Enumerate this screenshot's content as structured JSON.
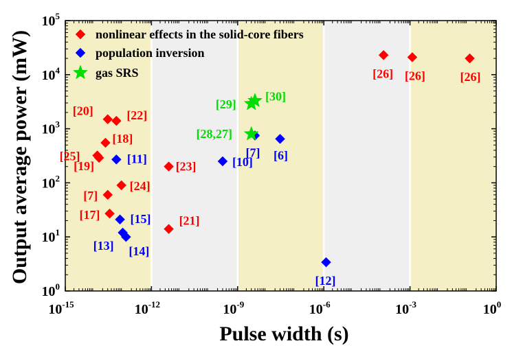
{
  "chart_data": {
    "type": "scatter",
    "xlabel": "Pulse width (s)",
    "ylabel": "Output average power (mW)",
    "x_scale": "log",
    "y_scale": "log",
    "xlim": [
      1e-15,
      1
    ],
    "ylim": [
      1,
      100000
    ],
    "x_ticks": [
      {
        "value": 1e-15,
        "base": "10",
        "exp": "-15"
      },
      {
        "value": 1e-12,
        "base": "10",
        "exp": "-12"
      },
      {
        "value": 1e-09,
        "base": "10",
        "exp": "-9"
      },
      {
        "value": 1e-06,
        "base": "10",
        "exp": "-6"
      },
      {
        "value": 0.001,
        "base": "10",
        "exp": "-3"
      },
      {
        "value": 1,
        "base": "10",
        "exp": "0"
      }
    ],
    "y_ticks": [
      {
        "value": 1,
        "base": "10",
        "exp": "0"
      },
      {
        "value": 10,
        "base": "10",
        "exp": "1"
      },
      {
        "value": 100,
        "base": "10",
        "exp": "2"
      },
      {
        "value": 1000,
        "base": "10",
        "exp": "3"
      },
      {
        "value": 10000,
        "base": "10",
        "exp": "4"
      },
      {
        "value": 100000,
        "base": "10",
        "exp": "5"
      }
    ],
    "bands": [
      {
        "x0": 1e-15,
        "x1": 1e-12,
        "color": "#f5efc6"
      },
      {
        "x0": 1e-12,
        "x1": 1e-09,
        "color": "#efefef"
      },
      {
        "x0": 1e-09,
        "x1": 1e-06,
        "color": "#f5efc6"
      },
      {
        "x0": 1e-06,
        "x1": 0.001,
        "color": "#efefef"
      },
      {
        "x0": 0.001,
        "x1": 1,
        "color": "#f5efc6"
      }
    ],
    "legend": {
      "position": "top-left"
    },
    "series": [
      {
        "name": "nonlinear effects in the solid-core fibers",
        "marker": "diamond",
        "color": "#ff0000",
        "points": [
          {
            "x": 3e-14,
            "y": 1500,
            "label": "[20]"
          },
          {
            "x": 6e-14,
            "y": 1400,
            "label": "[22]"
          },
          {
            "x": 2.5e-14,
            "y": 550,
            "label": "[18]"
          },
          {
            "x": 1.3e-14,
            "y": 320,
            "label": "[25]"
          },
          {
            "x": 1.5e-14,
            "y": 290,
            "label": "[19]"
          },
          {
            "x": 4e-12,
            "y": 200,
            "label": "[23]"
          },
          {
            "x": 9e-14,
            "y": 90,
            "label": "[24]"
          },
          {
            "x": 3e-14,
            "y": 60,
            "label": "[7]"
          },
          {
            "x": 3.5e-14,
            "y": 27,
            "label": "[17]"
          },
          {
            "x": 4e-12,
            "y": 14,
            "label": "[21]"
          },
          {
            "x": 0.00012,
            "y": 23000,
            "label": "[26]"
          },
          {
            "x": 0.0012,
            "y": 21000,
            "label": "[26]"
          },
          {
            "x": 0.12,
            "y": 20000,
            "label": "[26]"
          }
        ]
      },
      {
        "name": "population inversion",
        "marker": "diamond",
        "color": "#0000ff",
        "points": [
          {
            "x": 6e-14,
            "y": 270,
            "label": "[11]"
          },
          {
            "x": 8e-14,
            "y": 21,
            "label": "[15]"
          },
          {
            "x": 1e-13,
            "y": 12,
            "label": "[13]"
          },
          {
            "x": 1.3e-13,
            "y": 10,
            "label": "[14]"
          },
          {
            "x": 3e-10,
            "y": 250,
            "label": "[10]"
          },
          {
            "x": 4e-09,
            "y": 750,
            "label": "[7]"
          },
          {
            "x": 3e-08,
            "y": 650,
            "label": "[6]"
          },
          {
            "x": 1.2e-06,
            "y": 3.4,
            "label": "[12]"
          }
        ]
      },
      {
        "name": "gas SRS",
        "marker": "star",
        "color": "#00dd00",
        "points": [
          {
            "x": 3e-09,
            "y": 800,
            "label": "[28,27]"
          },
          {
            "x": 3e-09,
            "y": 2900,
            "label": "[29]"
          },
          {
            "x": 4e-09,
            "y": 3300,
            "label": "[30]"
          }
        ]
      }
    ]
  }
}
